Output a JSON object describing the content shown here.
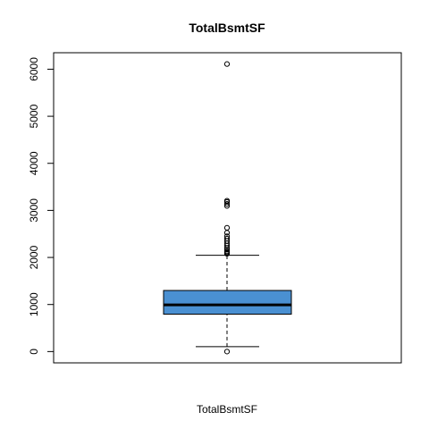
{
  "chart_data": {
    "type": "box",
    "title": "TotalBsmtSF",
    "xlabel": "TotalBsmtSF",
    "ylabel": "",
    "ylim": [
      -240,
      6350
    ],
    "yticks": [
      0,
      1000,
      2000,
      3000,
      4000,
      5000,
      6000
    ],
    "ytick_labels": [
      "0",
      "1000",
      "2000",
      "3000",
      "4000",
      "5000",
      "6000"
    ],
    "box": {
      "whisker_low": 105,
      "q1": 795,
      "median": 991,
      "q3": 1298,
      "whisker_high": 2046,
      "fill_color": "#4a90d2"
    },
    "outliers": [
      0,
      2078,
      2093,
      2110,
      2130,
      2165,
      2200,
      2250,
      2300,
      2350,
      2400,
      2450,
      2525,
      2630,
      3094,
      3138,
      3180,
      3206,
      6110
    ],
    "grid": false
  }
}
